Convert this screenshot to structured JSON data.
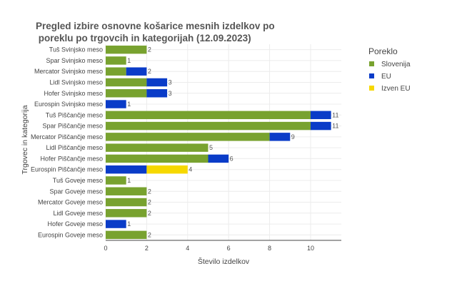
{
  "chart_data": {
    "type": "bar",
    "orientation": "horizontal",
    "stacked": true,
    "title_lines": [
      "Pregled izbire osnovne košarice mesnih izdelkov po",
      " poreklu po trgovcih in kategorijah (12.09.2023)"
    ],
    "xlabel": "Število izdelkov",
    "ylabel": "Trgovec in kategorija",
    "xlim": [
      0,
      11.5
    ],
    "xticks": [
      0,
      2,
      4,
      6,
      8,
      10
    ],
    "grid": true,
    "legend": {
      "title": "Poreklo",
      "placement": "right"
    },
    "categories": [
      "Tuš Svinjsko meso",
      "Spar Svinjsko meso",
      "Mercator Svinjsko meso",
      "Lidl Svinjsko meso",
      "Hofer Svinjsko meso",
      "Eurospin Svinjsko meso",
      "Tuš Piščančje meso",
      "Spar Piščančje meso",
      "Mercator Piščančje meso",
      "Lidl Piščančje meso",
      "Hofer Piščančje meso",
      "Eurospin Piščančje meso",
      "Tuš Goveje meso",
      "Spar Goveje meso",
      "Mercator Goveje meso",
      "Lidl Goveje meso",
      "Hofer Goveje meso",
      "Eurospin Goveje meso"
    ],
    "series": [
      {
        "name": "Slovenija",
        "color": "#78a22f",
        "values": [
          2,
          1,
          1,
          2,
          2,
          0,
          10,
          10,
          8,
          5,
          5,
          0,
          1,
          2,
          2,
          2,
          0,
          2
        ]
      },
      {
        "name": "EU",
        "color": "#0a3cc8",
        "values": [
          0,
          0,
          1,
          1,
          1,
          1,
          1,
          1,
          1,
          0,
          1,
          2,
          0,
          0,
          0,
          0,
          1,
          0
        ]
      },
      {
        "name": "Izven EU",
        "color": "#f6d800",
        "values": [
          0,
          0,
          0,
          0,
          0,
          0,
          0,
          0,
          0,
          0,
          0,
          2,
          0,
          0,
          0,
          0,
          0,
          0
        ]
      }
    ],
    "totals": [
      "2",
      "1",
      "2",
      "3",
      "3",
      "1",
      "11",
      "11",
      "9",
      "5",
      "6",
      "4",
      "1",
      "2",
      "2",
      "2",
      "1",
      "2"
    ]
  }
}
